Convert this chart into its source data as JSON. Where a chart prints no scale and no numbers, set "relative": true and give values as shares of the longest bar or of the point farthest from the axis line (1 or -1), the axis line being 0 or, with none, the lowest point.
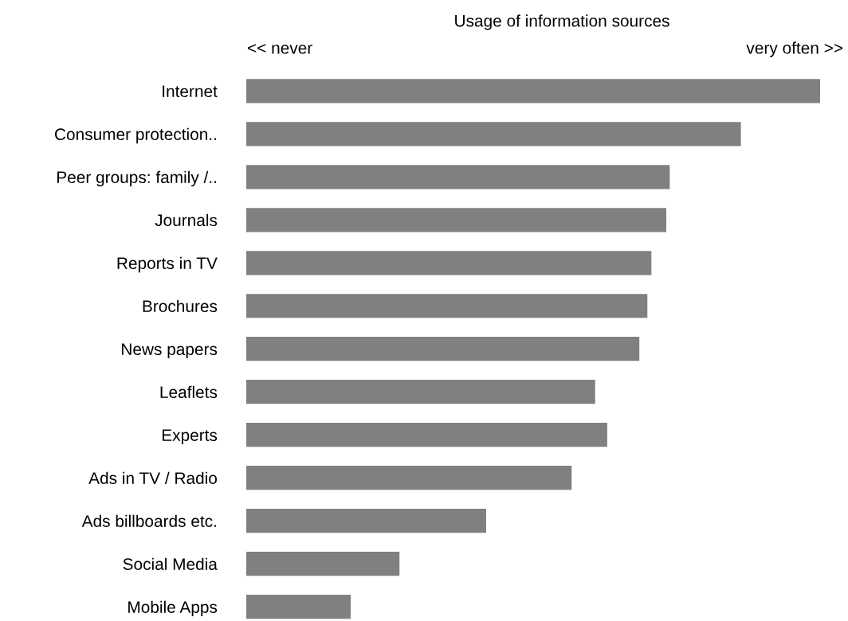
{
  "chart_data": {
    "type": "bar",
    "orientation": "horizontal",
    "relative": true,
    "title": "Usage of information sources",
    "annotations": [
      "<< never",
      "very often >>"
    ],
    "categories": [
      "Internet",
      "Consumer protection..",
      "Peer groups: family /..",
      "Journals",
      "Reports in TV",
      "Brochures",
      "News papers",
      "Leaflets",
      "Experts",
      "Ads in TV / Radio",
      "Ads billboards etc.",
      "Social Media",
      "Mobile Apps"
    ],
    "values": [
      1,
      0.862,
      0.738,
      0.732,
      0.706,
      0.699,
      0.685,
      0.608,
      0.629,
      0.567,
      0.418,
      0.267,
      0.182
    ],
    "color": "#808080",
    "grid": false,
    "legend": false
  }
}
